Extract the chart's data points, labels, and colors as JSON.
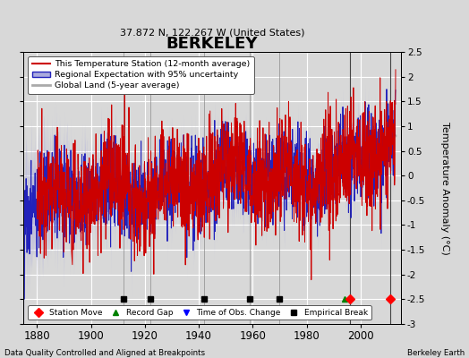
{
  "title": "BERKELEY",
  "subtitle": "37.872 N, 122.267 W (United States)",
  "ylabel": "Temperature Anomaly (°C)",
  "xlabel_left": "Data Quality Controlled and Aligned at Breakpoints",
  "xlabel_right": "Berkeley Earth",
  "xlim": [
    1875,
    2015
  ],
  "ylim": [
    -3.0,
    2.5
  ],
  "yticks": [
    -3.0,
    -2.5,
    -2.0,
    -1.5,
    -1.0,
    -0.5,
    0.0,
    0.5,
    1.0,
    1.5,
    2.0,
    2.5
  ],
  "ytick_labels": [
    "-3",
    "-2.5",
    "-2",
    "-1.5",
    "-1",
    "-0.5",
    "0",
    "0.5",
    "1",
    "1.5",
    "2",
    "2.5"
  ],
  "xticks": [
    1880,
    1900,
    1920,
    1940,
    1960,
    1980,
    2000
  ],
  "background_color": "#d8d8d8",
  "plot_bg_color": "#d8d8d8",
  "grid_color": "#ffffff",
  "empirical_breaks": [
    1912,
    1922,
    1942,
    1959,
    1970
  ],
  "station_moves": [
    1996,
    2011
  ],
  "record_gaps": [
    1994
  ],
  "time_obs_changes": [],
  "red_line_color": "#cc0000",
  "blue_line_color": "#2222bb",
  "blue_fill_color": "#aaaadd",
  "gray_line_color": "#aaaaaa",
  "vertical_line_color": "#888888",
  "marker_y": -2.5,
  "legend_main": [
    {
      "label": "This Temperature Station (12-month average)",
      "color": "#cc0000",
      "lw": 1.5
    },
    {
      "label": "Regional Expectation with 95% uncertainty",
      "color": "#2222bb",
      "lw": 1.5
    },
    {
      "label": "Global Land (5-year average)",
      "color": "#aaaaaa",
      "lw": 2.0
    }
  ],
  "legend_markers": [
    {
      "label": "Station Move",
      "color": "red",
      "marker": "D"
    },
    {
      "label": "Record Gap",
      "color": "green",
      "marker": "^"
    },
    {
      "label": "Time of Obs. Change",
      "color": "blue",
      "marker": "v"
    },
    {
      "label": "Empirical Break",
      "color": "black",
      "marker": "s"
    }
  ]
}
